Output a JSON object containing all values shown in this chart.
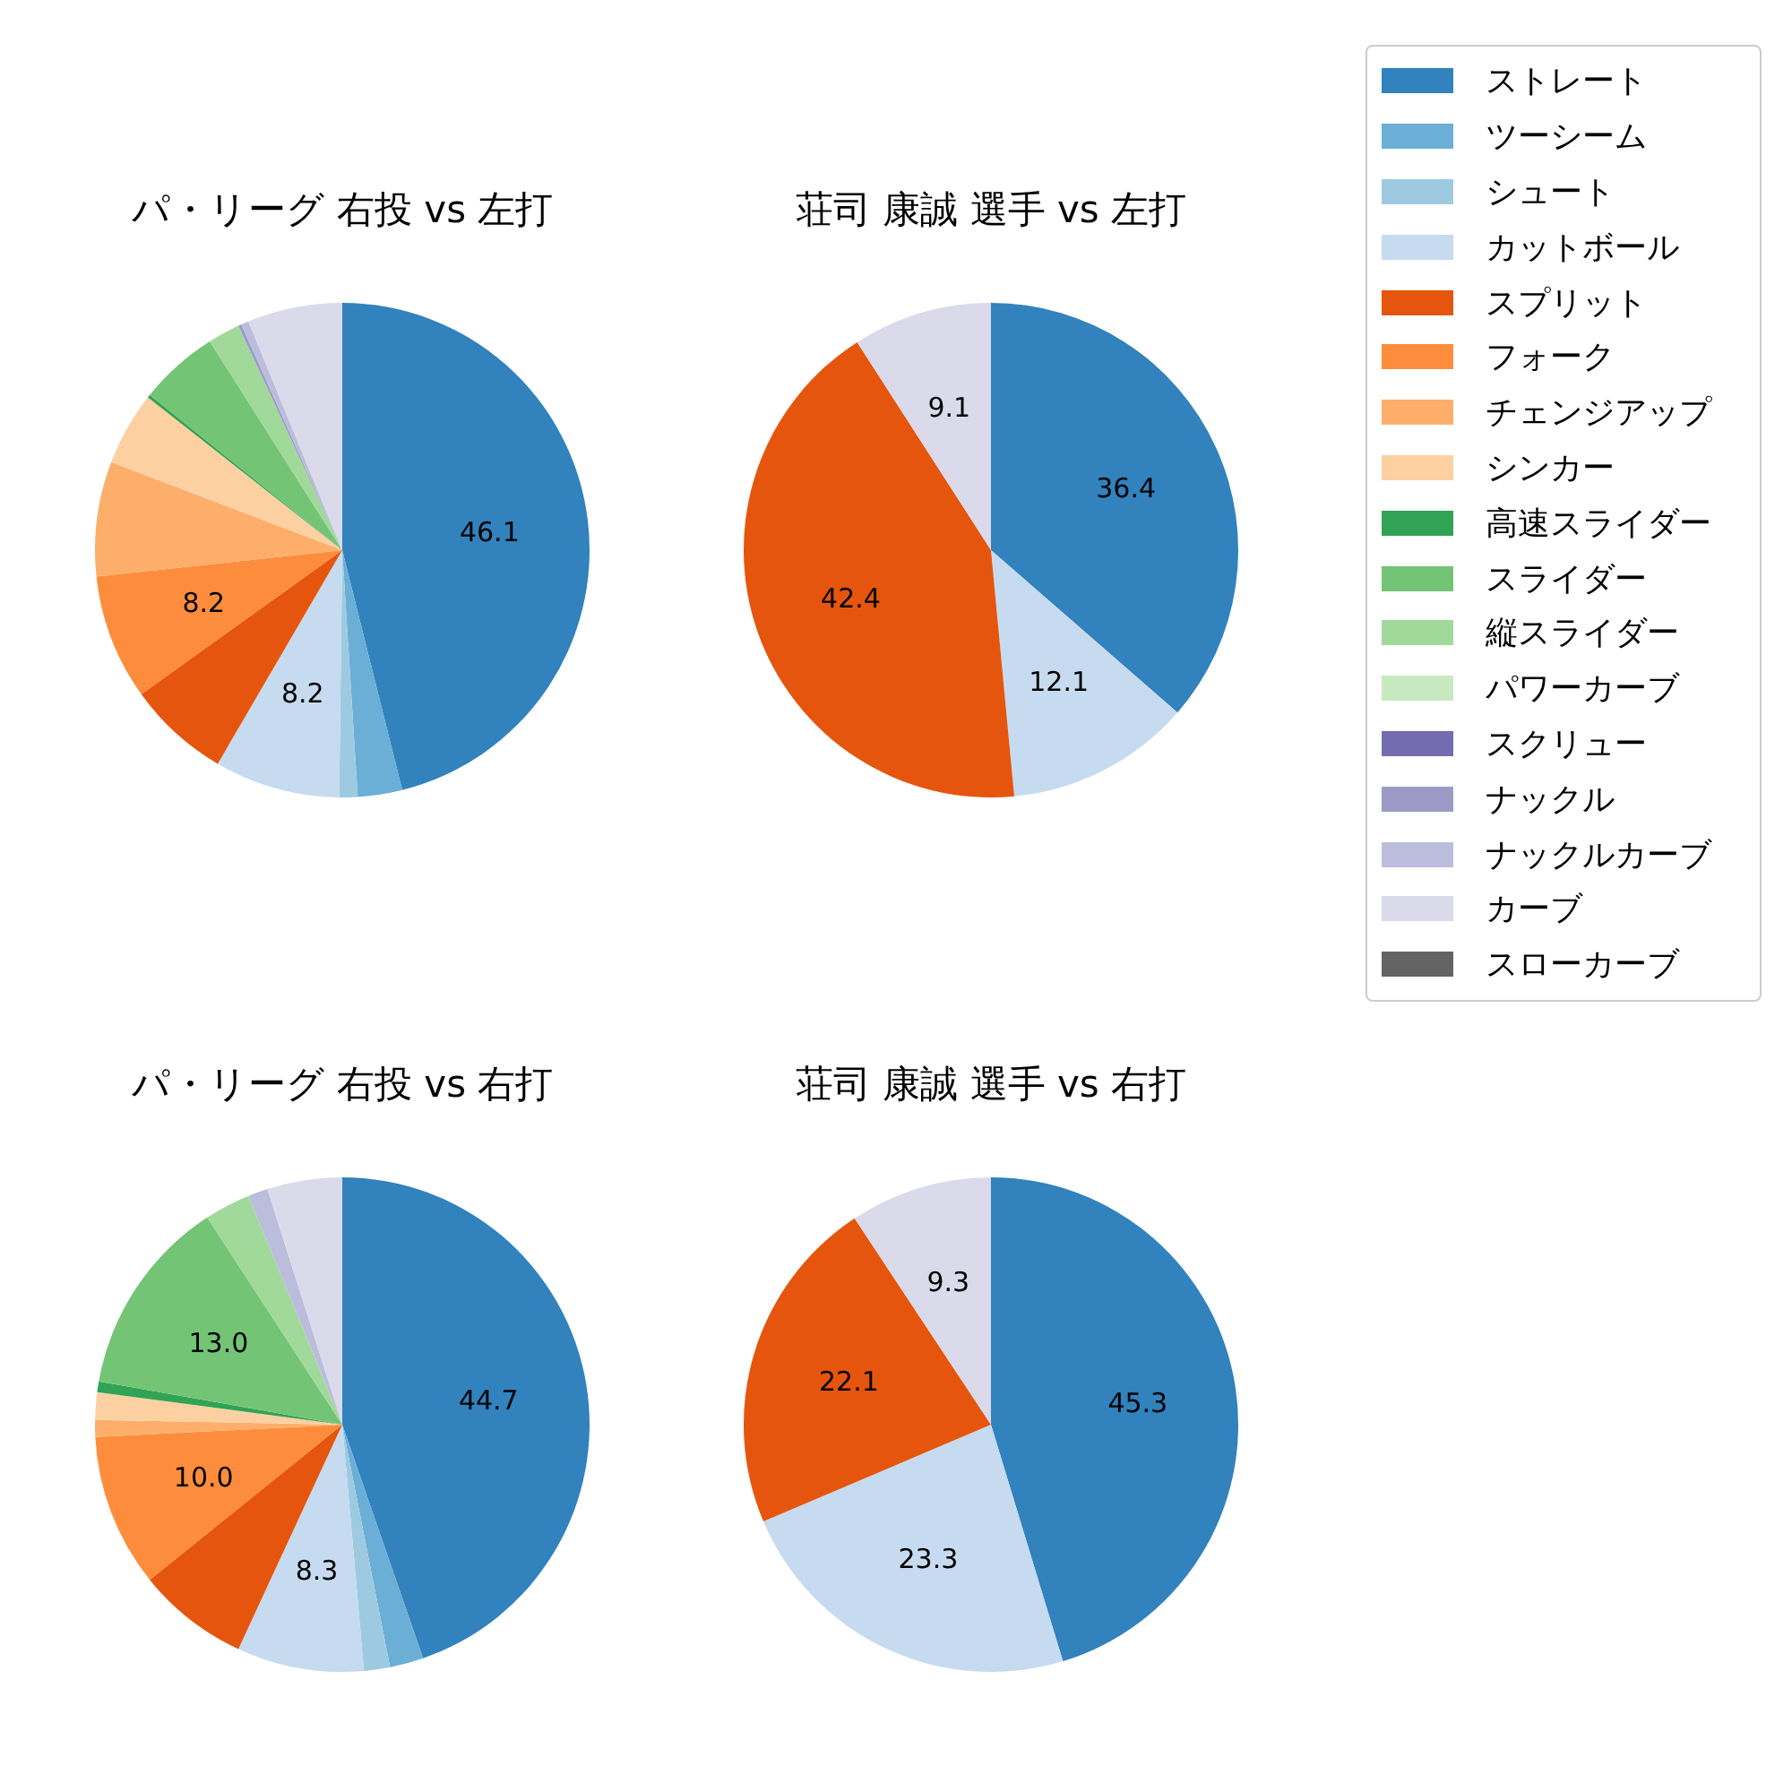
{
  "chart_data": [
    {
      "type": "pie",
      "title": "パ・リーグ 右投 vs 左打",
      "categories": [
        "ストレート",
        "ツーシーム",
        "シュート",
        "カットボール",
        "スプリット",
        "フォーク",
        "チェンジアップ",
        "シンカー",
        "高速スライダー",
        "スライダー",
        "縦スライダー",
        "パワーカーブ",
        "スクリュー",
        "ナックル",
        "ナックルカーブ",
        "カーブ",
        "スローカーブ"
      ],
      "values": [
        46.1,
        2.9,
        1.2,
        8.2,
        6.7,
        8.2,
        7.5,
        4.8,
        0.2,
        5.2,
        2.1,
        0,
        0,
        0.2,
        0.5,
        6.2,
        0
      ],
      "value_labels": [
        "46.1",
        null,
        null,
        "8.2",
        null,
        "8.2",
        null,
        null,
        null,
        null,
        null,
        null,
        null,
        null,
        null,
        null,
        null
      ],
      "legend": "right",
      "colors": [
        "#3182bd",
        "#6baed6",
        "#9ecae1",
        "#c6dbef",
        "#e6550d",
        "#fd8d3c",
        "#fdae6b",
        "#fdd0a2",
        "#31a354",
        "#74c476",
        "#a1d99b",
        "#c7e9c0",
        "#756bb1",
        "#9e9ac8",
        "#bcbddc",
        "#dadaeb",
        "#636363"
      ]
    },
    {
      "type": "pie",
      "title": "荘司 康誠 選手 vs 左打",
      "categories": [
        null,
        null,
        null,
        null,
        null,
        null,
        null,
        null,
        null,
        null,
        null,
        null,
        null,
        null,
        null,
        null,
        null
      ],
      "values": [
        36.4,
        0,
        0,
        12.1,
        42.4,
        0,
        0,
        0,
        0,
        0,
        0,
        0,
        0,
        0,
        0,
        9.1,
        0
      ],
      "value_labels": [
        "36.4",
        null,
        null,
        "12.1",
        "42.4",
        null,
        null,
        null,
        null,
        null,
        null,
        null,
        null,
        null,
        null,
        "9.1",
        null
      ],
      "colors": [
        "#3182bd",
        "#6baed6",
        "#9ecae1",
        "#c6dbef",
        "#e6550d",
        "#fd8d3c",
        "#fdae6b",
        "#fdd0a2",
        "#31a354",
        "#74c476",
        "#a1d99b",
        "#c7e9c0",
        "#756bb1",
        "#9e9ac8",
        "#bcbddc",
        "#dadaeb",
        "#636363"
      ]
    },
    {
      "type": "pie",
      "title": "パ・リーグ 右投 vs 右打",
      "categories": [
        null,
        null,
        null,
        null,
        null,
        null,
        null,
        null,
        null,
        null,
        null,
        null,
        null,
        null,
        null,
        null,
        null
      ],
      "values": [
        44.7,
        2.2,
        1.7,
        8.3,
        7.3,
        10.0,
        1.1,
        1.8,
        0.7,
        13.0,
        3.0,
        0,
        0,
        0,
        1.3,
        4.9,
        0
      ],
      "value_labels": [
        "44.7",
        null,
        null,
        "8.3",
        null,
        "10.0",
        null,
        null,
        null,
        "13.0",
        null,
        null,
        null,
        null,
        null,
        null,
        null
      ],
      "colors": [
        "#3182bd",
        "#6baed6",
        "#9ecae1",
        "#c6dbef",
        "#e6550d",
        "#fd8d3c",
        "#fdae6b",
        "#fdd0a2",
        "#31a354",
        "#74c476",
        "#a1d99b",
        "#c7e9c0",
        "#756bb1",
        "#9e9ac8",
        "#bcbddc",
        "#dadaeb",
        "#636363"
      ]
    },
    {
      "type": "pie",
      "title": "荘司 康誠 選手 vs 右打",
      "categories": [
        null,
        null,
        null,
        null,
        null,
        null,
        null,
        null,
        null,
        null,
        null,
        null,
        null,
        null,
        null,
        null,
        null
      ],
      "values": [
        45.3,
        0,
        0,
        23.3,
        22.1,
        0,
        0,
        0,
        0,
        0,
        0,
        0,
        0,
        0,
        0,
        9.3,
        0
      ],
      "value_labels": [
        "45.3",
        null,
        null,
        "23.3",
        "22.1",
        null,
        null,
        null,
        null,
        null,
        null,
        null,
        null,
        null,
        null,
        "9.3",
        null
      ],
      "colors": [
        "#3182bd",
        "#6baed6",
        "#9ecae1",
        "#c6dbef",
        "#e6550d",
        "#fd8d3c",
        "#fdae6b",
        "#fdd0a2",
        "#31a354",
        "#74c476",
        "#a1d99b",
        "#c7e9c0",
        "#756bb1",
        "#9e9ac8",
        "#bcbddc",
        "#dadaeb",
        "#636363"
      ]
    }
  ]
}
